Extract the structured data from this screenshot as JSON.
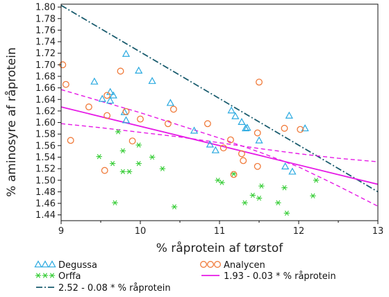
{
  "chart_data": {
    "type": "scatter",
    "xlabel": "% råprotein af tørstof",
    "ylabel": "% aminosyre af råprotein",
    "xlim": [
      9,
      13
    ],
    "ylim": [
      1.43,
      1.805
    ],
    "x_ticks": [
      "9",
      "10",
      "11",
      "12",
      "13"
    ],
    "y_ticks": [
      "1.44",
      "1.46",
      "1.48",
      "1.50",
      "1.52",
      "1.54",
      "1.56",
      "1.58",
      "1.60",
      "1.62",
      "1.64",
      "1.66",
      "1.68",
      "1.70",
      "1.72",
      "1.74",
      "1.76",
      "1.78",
      "1.80"
    ],
    "grid": false,
    "legend_position": "bottom",
    "series": [
      {
        "name": "Degussa",
        "marker": "triangle",
        "color": "#29a9e0",
        "points": [
          [
            9.82,
            1.719
          ],
          [
            9.98,
            1.69
          ],
          [
            10.15,
            1.672
          ],
          [
            9.42,
            1.671
          ],
          [
            9.62,
            1.653
          ],
          [
            9.66,
            1.647
          ],
          [
            9.52,
            1.641
          ],
          [
            9.62,
            1.638
          ],
          [
            10.38,
            1.634
          ],
          [
            9.8,
            1.618
          ],
          [
            9.82,
            1.604
          ],
          [
            10.68,
            1.586
          ],
          [
            11.15,
            1.621
          ],
          [
            11.2,
            1.611
          ],
          [
            11.28,
            1.601
          ],
          [
            11.33,
            1.59
          ],
          [
            11.35,
            1.591
          ],
          [
            11.88,
            1.612
          ],
          [
            12.08,
            1.59
          ],
          [
            11.5,
            1.569
          ],
          [
            10.88,
            1.562
          ],
          [
            10.95,
            1.552
          ],
          [
            11.83,
            1.524
          ],
          [
            11.92,
            1.515
          ]
        ]
      },
      {
        "name": "Orffa",
        "marker": "star",
        "color": "#33cc33",
        "points": [
          [
            9.72,
            1.584
          ],
          [
            9.98,
            1.561
          ],
          [
            9.78,
            1.551
          ],
          [
            9.48,
            1.541
          ],
          [
            10.15,
            1.54
          ],
          [
            9.65,
            1.529
          ],
          [
            9.98,
            1.529
          ],
          [
            10.28,
            1.52
          ],
          [
            9.78,
            1.515
          ],
          [
            9.86,
            1.515
          ],
          [
            11.18,
            1.511
          ],
          [
            10.98,
            1.5
          ],
          [
            11.03,
            1.496
          ],
          [
            12.22,
            1.5
          ],
          [
            11.53,
            1.49
          ],
          [
            11.82,
            1.487
          ],
          [
            11.42,
            1.474
          ],
          [
            11.5,
            1.469
          ],
          [
            12.18,
            1.473
          ],
          [
            11.32,
            1.461
          ],
          [
            11.74,
            1.461
          ],
          [
            9.68,
            1.461
          ],
          [
            10.43,
            1.454
          ],
          [
            11.85,
            1.443
          ]
        ]
      },
      {
        "name": "Analycen",
        "marker": "circle",
        "color": "#f07a3a",
        "points": [
          [
            9.02,
            1.7
          ],
          [
            9.06,
            1.666
          ],
          [
            9.75,
            1.689
          ],
          [
            9.58,
            1.647
          ],
          [
            11.5,
            1.67
          ],
          [
            9.35,
            1.627
          ],
          [
            10.42,
            1.623
          ],
          [
            9.82,
            1.619
          ],
          [
            9.58,
            1.612
          ],
          [
            10.0,
            1.606
          ],
          [
            10.35,
            1.598
          ],
          [
            10.85,
            1.598
          ],
          [
            11.82,
            1.59
          ],
          [
            12.02,
            1.588
          ],
          [
            11.48,
            1.582
          ],
          [
            9.12,
            1.569
          ],
          [
            9.9,
            1.568
          ],
          [
            11.14,
            1.57
          ],
          [
            11.05,
            1.556
          ],
          [
            11.28,
            1.546
          ],
          [
            11.3,
            1.534
          ],
          [
            11.48,
            1.524
          ],
          [
            9.55,
            1.517
          ],
          [
            11.18,
            1.51
          ]
        ]
      }
    ],
    "lines": [
      {
        "name": "2.52 - 0.08 * % råprotein",
        "color": "#1a5c6e",
        "style": "dashdot",
        "points": [
          [
            9.0,
            1.803
          ],
          [
            13.0,
            1.48
          ]
        ]
      },
      {
        "name": "1.93 - 0.03 * % råprotein",
        "color": "#e619e6",
        "style": "solid",
        "points": [
          [
            9.0,
            1.627
          ],
          [
            13.0,
            1.493
          ]
        ]
      },
      {
        "name": "",
        "color": "#e619e6",
        "style": "dashed",
        "points": [
          [
            9.0,
            1.598
          ],
          [
            9.5,
            1.591
          ],
          [
            10.0,
            1.583
          ],
          [
            10.5,
            1.575
          ],
          [
            11.0,
            1.565
          ],
          [
            11.5,
            1.555
          ],
          [
            12.0,
            1.546
          ],
          [
            12.5,
            1.538
          ],
          [
            13.0,
            1.532
          ]
        ]
      },
      {
        "name": "",
        "color": "#e619e6",
        "style": "dashed",
        "points": [
          [
            9.0,
            1.657
          ],
          [
            9.5,
            1.637
          ],
          [
            10.0,
            1.617
          ],
          [
            10.5,
            1.595
          ],
          [
            11.0,
            1.573
          ],
          [
            11.5,
            1.549
          ],
          [
            12.0,
            1.523
          ],
          [
            12.5,
            1.49
          ],
          [
            13.0,
            1.455
          ]
        ]
      }
    ]
  },
  "legend": [
    {
      "key": "degussa",
      "label": "Degussa",
      "marker": "triangle",
      "color": "#29a9e0"
    },
    {
      "key": "analycen",
      "label": "Analycen",
      "marker": "circle",
      "color": "#f07a3a"
    },
    {
      "key": "orffa",
      "label": "Orffa",
      "marker": "star",
      "color": "#33cc33"
    },
    {
      "key": "line-magenta",
      "label": "1.93 - 0.03 * % råprotein",
      "marker": "line-solid",
      "color": "#e619e6"
    },
    {
      "key": "line-teal",
      "label": "2.52 - 0.08 * % råprotein",
      "marker": "line-dashdot",
      "color": "#1a5c6e"
    }
  ]
}
